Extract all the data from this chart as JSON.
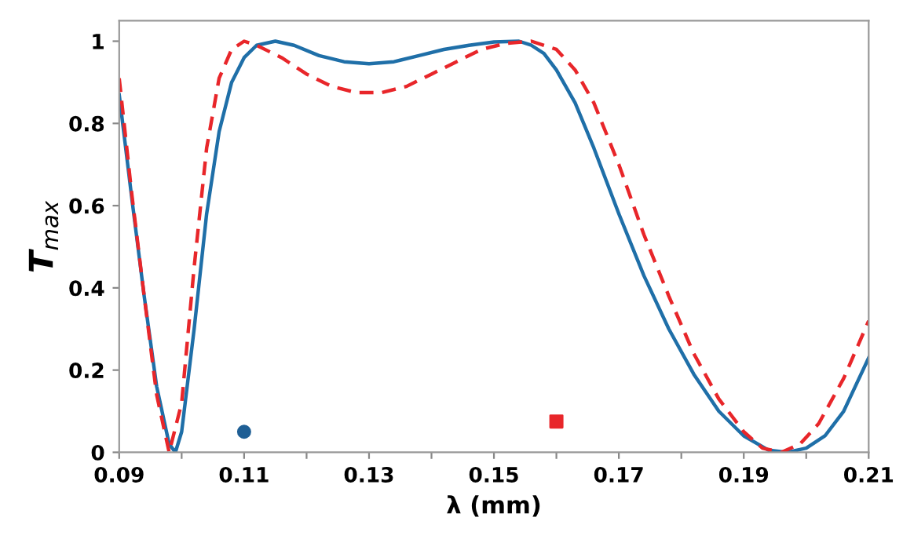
{
  "chart_data": {
    "type": "line",
    "xlabel": "λ (mm)",
    "ylabel": "T$_{max}$",
    "xlim": [
      0.09,
      0.21
    ],
    "ylim": [
      0,
      1.05
    ],
    "xticks": [
      0.09,
      {
        "value": 0.1,
        "label": null
      },
      0.11,
      {
        "value": 0.12,
        "label": null
      },
      0.13,
      {
        "value": 0.14,
        "label": null
      },
      0.15,
      {
        "value": 0.16,
        "label": null
      },
      0.17,
      {
        "value": 0.18,
        "label": null
      },
      0.19,
      {
        "value": 0.2,
        "label": null
      },
      0.21
    ],
    "yticks": [
      0,
      0.2,
      0.4,
      0.6,
      0.8,
      1
    ],
    "grid": false,
    "series": [
      {
        "color": "#1f6fa8",
        "line_style": "solid",
        "marker": "none",
        "x": [
          0.09,
          0.092,
          0.094,
          0.096,
          0.098,
          0.099,
          0.1,
          0.102,
          0.104,
          0.106,
          0.108,
          0.11,
          0.112,
          0.115,
          0.118,
          0.122,
          0.126,
          0.13,
          0.134,
          0.138,
          0.142,
          0.146,
          0.15,
          0.154,
          0.156,
          0.158,
          0.16,
          0.163,
          0.166,
          0.17,
          0.174,
          0.178,
          0.182,
          0.186,
          0.19,
          0.194,
          0.197,
          0.2,
          0.203,
          0.206,
          0.21
        ],
        "values": [
          0.87,
          0.62,
          0.38,
          0.16,
          0.02,
          0.0,
          0.05,
          0.3,
          0.58,
          0.78,
          0.9,
          0.96,
          0.99,
          1.0,
          0.99,
          0.965,
          0.95,
          0.945,
          0.95,
          0.965,
          0.98,
          0.99,
          0.998,
          1.0,
          0.99,
          0.97,
          0.93,
          0.85,
          0.74,
          0.58,
          0.43,
          0.3,
          0.19,
          0.1,
          0.04,
          0.005,
          0.0,
          0.01,
          0.04,
          0.1,
          0.23
        ]
      },
      {
        "color": "#e8262a",
        "line_style": "dashed",
        "marker": "none",
        "x": [
          0.09,
          0.092,
          0.094,
          0.096,
          0.098,
          0.1,
          0.102,
          0.104,
          0.106,
          0.108,
          0.11,
          0.112,
          0.116,
          0.12,
          0.124,
          0.128,
          0.132,
          0.136,
          0.14,
          0.144,
          0.148,
          0.152,
          0.156,
          0.16,
          0.163,
          0.166,
          0.17,
          0.174,
          0.178,
          0.182,
          0.186,
          0.19,
          0.193,
          0.196,
          0.199,
          0.202,
          0.206,
          0.21
        ],
        "values": [
          0.91,
          0.63,
          0.38,
          0.14,
          0.0,
          0.12,
          0.45,
          0.74,
          0.91,
          0.98,
          1.0,
          0.99,
          0.96,
          0.92,
          0.89,
          0.875,
          0.875,
          0.89,
          0.92,
          0.95,
          0.98,
          0.995,
          1.0,
          0.98,
          0.93,
          0.85,
          0.7,
          0.53,
          0.38,
          0.24,
          0.13,
          0.05,
          0.01,
          0.0,
          0.02,
          0.07,
          0.18,
          0.32
        ]
      },
      {
        "type": "scatter",
        "color": "#1f5f95",
        "marker": "circle",
        "x": [
          0.11
        ],
        "values": [
          0.05
        ]
      },
      {
        "type": "scatter",
        "color": "#e8262a",
        "marker": "square",
        "x": [
          0.16
        ],
        "values": [
          0.075
        ]
      }
    ]
  }
}
